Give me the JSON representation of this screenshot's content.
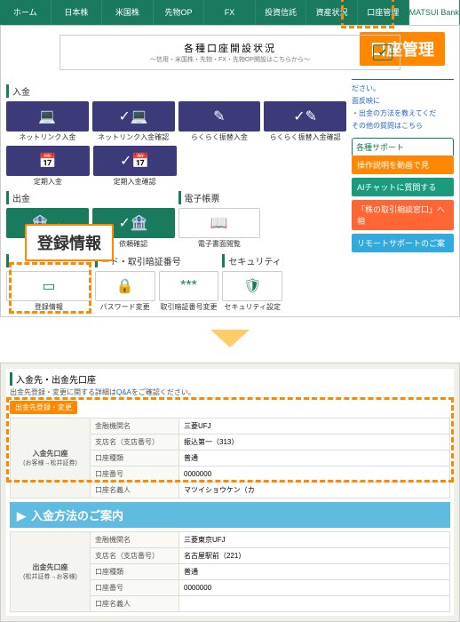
{
  "nav": {
    "items": [
      "ホーム",
      "日本株",
      "米国株",
      "先物OP",
      "FX",
      "投資信託",
      "資産状況",
      "口座管理",
      "MATSUI Bank"
    ],
    "highlight_index": 7
  },
  "callouts": {
    "account_mgmt": "口座管理",
    "reg_info": "登録情報"
  },
  "banner": {
    "title": "各種口座開設状況",
    "sub": "〜信用・米国株・先物・FX・先物OP開設はこちらから〜"
  },
  "side": {
    "links": [
      "ださい。",
      "面反映に",
      "・出金の方法を教えてくだ",
      "その他の質問はこちら"
    ],
    "support_head": "各種サポート",
    "buttons": [
      {
        "label": "操作説明を動画で見",
        "color": "#ff8800"
      },
      {
        "label": "AIチャットに質問する",
        "color": "#1a9a7e"
      },
      {
        "label": "「株の取引相談窓口」へ相",
        "color": "#ff6633"
      },
      {
        "label": "リモートサポートのご案",
        "color": "#33aadd"
      }
    ]
  },
  "sections": {
    "deposit": {
      "head": "入金",
      "row1": [
        {
          "label": "ネットリンク入金",
          "icon": "💻"
        },
        {
          "label": "ネットリンク入金確認",
          "icon": "✓💻"
        },
        {
          "label": "らくらく振替入金",
          "icon": "✎"
        },
        {
          "label": "らくらく振替入金確認",
          "icon": "✓✎"
        }
      ],
      "row2": [
        {
          "label": "定期入金",
          "icon": "📅"
        },
        {
          "label": "定期入金確認",
          "icon": "✓📅"
        }
      ]
    },
    "withdraw": {
      "head": "出金",
      "tiles": [
        {
          "label": "",
          "icon": "🏦→"
        },
        {
          "label": "依頼確認",
          "icon": "✓🏦"
        }
      ]
    },
    "ebook": {
      "head": "電子帳票",
      "tiles": [
        {
          "label": "電子書面閲覧",
          "icon": "📖"
        }
      ]
    },
    "pin": {
      "head": "ード・取引暗証番号",
      "tiles": [
        {
          "label": "パスワード変更",
          "icon": "🔒"
        },
        {
          "label": "取引暗証番号変更",
          "icon": "***"
        }
      ]
    },
    "security": {
      "head": "セキュリティ",
      "tiles": [
        {
          "label": "セキュリティ設定",
          "icon": "🛡"
        }
      ]
    },
    "reginfo": {
      "label": "登録情報"
    }
  },
  "detail": {
    "head": "入金先・出金先口座",
    "note_pre": "出金先登録・変更に関する詳細は",
    "note_link": "Q&A",
    "note_post": "をご確認ください。",
    "btn": "出金先登録・変更",
    "guide": "入金方法のご案内",
    "table1": {
      "rowhead": "入金先口座",
      "rowsub": "(お客様→松井証券)",
      "rows": [
        [
          "金融機関名",
          "三菱UFJ"
        ],
        [
          "支店名（支店番号）",
          "振込第一（313）"
        ],
        [
          "口座種類",
          "普通"
        ],
        [
          "口座番号",
          "0000000"
        ],
        [
          "口座名義人",
          "マツイショウケン（カ"
        ]
      ]
    },
    "table2": {
      "rowhead": "出金先口座",
      "rowsub": "(松井証券→お客様)",
      "rows": [
        [
          "金融機関名",
          "三菱東京UFJ"
        ],
        [
          "支店名（支店番号）",
          "名古屋駅前（221）"
        ],
        [
          "口座種類",
          "普通"
        ],
        [
          "口座番号",
          "0000000"
        ],
        [
          "口座名義人",
          ""
        ]
      ]
    }
  },
  "colors": {
    "primary": "#1a7a5e",
    "tile": "#3d3a7a",
    "orange": "#ff8800"
  }
}
